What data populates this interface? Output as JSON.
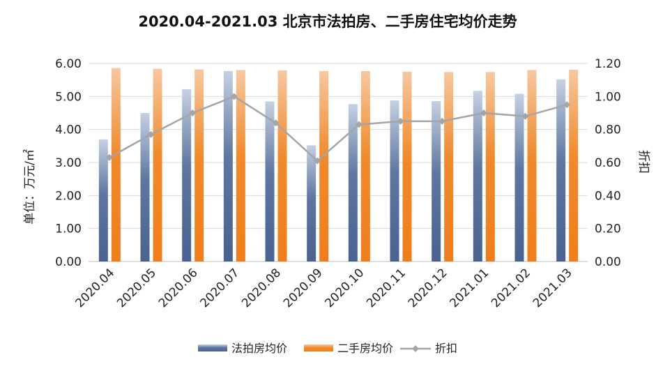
{
  "chart_data": {
    "type": "bar",
    "title": "2020.04-2021.03 北京市法拍房、二手房住宅均价走势",
    "ylabel": "单位：万元/㎡",
    "y2label": "折扣",
    "categories": [
      "2020.04",
      "2020.05",
      "2020.06",
      "2020.07",
      "2020.08",
      "2020.09",
      "2020.10",
      "2020.11",
      "2020.12",
      "2021.01",
      "2021.02",
      "2021.03"
    ],
    "ylim": [
      0,
      6
    ],
    "y2lim": [
      0,
      1.2
    ],
    "yticks": [
      "0.00",
      "1.00",
      "2.00",
      "3.00",
      "4.00",
      "5.00",
      "6.00"
    ],
    "y2ticks": [
      "0.00",
      "0.20",
      "0.40",
      "0.60",
      "0.80",
      "1.00",
      "1.20"
    ],
    "grid": true,
    "legend_position": "bottom",
    "series": [
      {
        "name": "法拍房均价",
        "type": "bar",
        "axis": "left",
        "color": "#4e6690",
        "values": [
          3.7,
          4.5,
          5.22,
          5.77,
          4.85,
          3.52,
          4.77,
          4.88,
          4.86,
          5.17,
          5.08,
          5.52
        ]
      },
      {
        "name": "二手房均价",
        "type": "bar",
        "axis": "left",
        "color": "#f08a2c",
        "values": [
          5.86,
          5.84,
          5.82,
          5.8,
          5.79,
          5.77,
          5.77,
          5.75,
          5.74,
          5.74,
          5.8,
          5.81
        ]
      },
      {
        "name": "折扣",
        "type": "line",
        "axis": "right",
        "color": "#a5a5a5",
        "values": [
          0.63,
          0.77,
          0.9,
          1.0,
          0.84,
          0.61,
          0.83,
          0.85,
          0.85,
          0.9,
          0.88,
          0.95
        ]
      }
    ]
  }
}
